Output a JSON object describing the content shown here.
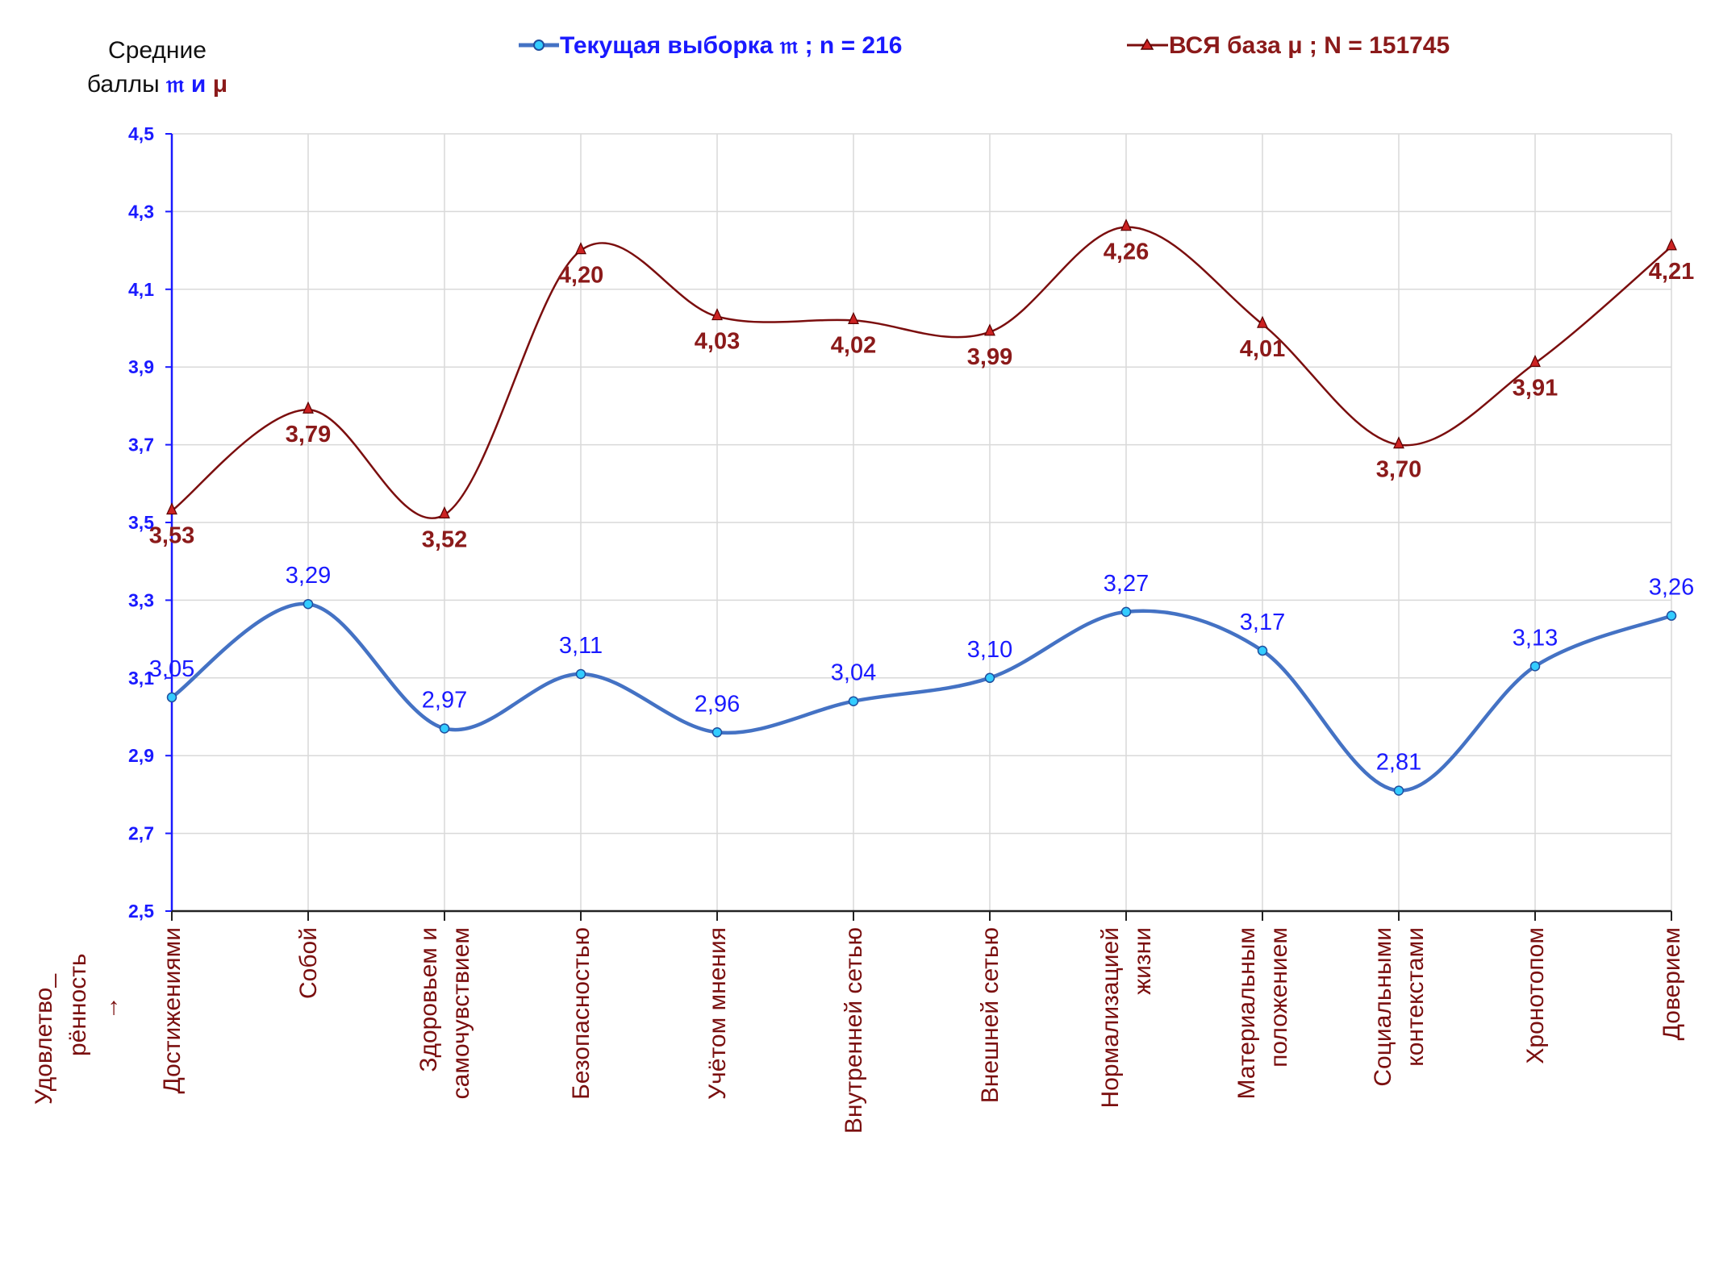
{
  "chart_data": {
    "type": "line",
    "ylabel": {
      "line1": "Средние",
      "line2_prefix": "баллы ",
      "sym1": "𝔪",
      "conj": " и ",
      "sym2": "μ"
    },
    "xlabel": {
      "line1": "Удовлетво_",
      "line2": "рённость",
      "arrow": "→"
    },
    "ylim": [
      2.5,
      4.5
    ],
    "yticks": [
      "2,5",
      "2,7",
      "2,9",
      "3,1",
      "3,3",
      "3,5",
      "3,7",
      "3,9",
      "4,1",
      "4,3",
      "4,5"
    ],
    "ytick_values": [
      2.5,
      2.7,
      2.9,
      3.1,
      3.3,
      3.5,
      3.7,
      3.9,
      4.1,
      4.3,
      4.5
    ],
    "grid": true,
    "legend_position": "top",
    "categories": [
      [
        "Достижениями"
      ],
      [
        "Собой"
      ],
      [
        "Здоровьем и",
        "самочувствием"
      ],
      [
        "Безопасностью"
      ],
      [
        "Учётом мнения"
      ],
      [
        "Внутренней сетью"
      ],
      [
        "Внешней сетью"
      ],
      [
        "Нормализацией",
        "жизни"
      ],
      [
        "Материальным",
        "положением"
      ],
      [
        "Социальными",
        "контекстами"
      ],
      [
        "Хронотопом"
      ],
      [
        "Доверием"
      ]
    ],
    "series": [
      {
        "name": "Текущая выборка 𝔪 ; n = 216",
        "color": "#4472c4",
        "marker_fill": "#33ccff",
        "marker": "circle",
        "values": [
          3.05,
          3.29,
          2.97,
          3.11,
          2.96,
          3.04,
          3.1,
          3.27,
          3.17,
          2.81,
          3.13,
          3.26
        ],
        "labels": [
          "3,05",
          "3,29",
          "2,97",
          "3,11",
          "2,96",
          "3,04",
          "3,10",
          "3,27",
          "3,17",
          "2,81",
          "3,13",
          "3,26"
        ]
      },
      {
        "name": "ВСЯ база μ ; N = 151745",
        "color": "#7b0e0e",
        "marker_fill": "#cc2222",
        "marker": "triangle",
        "values": [
          3.53,
          3.79,
          3.52,
          4.2,
          4.03,
          4.02,
          3.99,
          4.26,
          4.01,
          3.7,
          3.91,
          4.21
        ],
        "labels": [
          "3,53",
          "3,79",
          "3,52",
          "4,20",
          "4,03",
          "4,02",
          "3,99",
          "4,26",
          "4,01",
          "3,70",
          "3,91",
          "4,21"
        ]
      }
    ]
  },
  "colors": {
    "axis": "#1a1aff",
    "grid": "#d9d9d9",
    "category_text": "#7a0f0f"
  }
}
